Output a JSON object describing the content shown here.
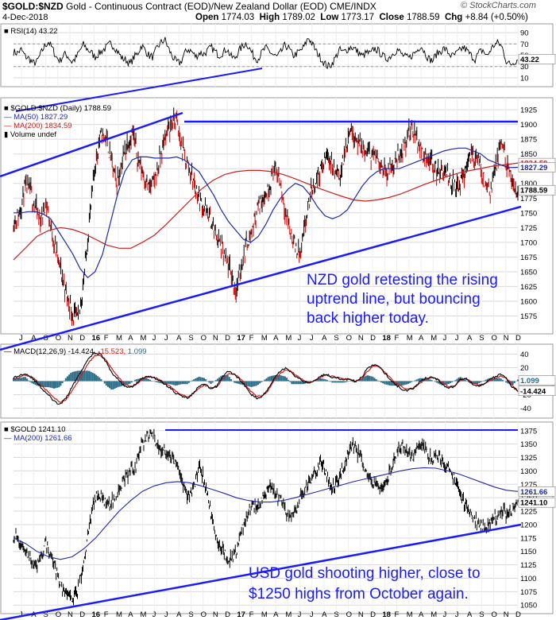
{
  "header": {
    "symbol": "$GOLD:$NZD",
    "description": "Gold - Continuous Contract (EOD)/New Zealand Dollar (EOD)",
    "exchange": "CME/INDX",
    "credit": "© StockCharts.com",
    "date": "4-Dec-2018",
    "open_label": "Open",
    "open": "1774.03",
    "high_label": "High",
    "high": "1789.02",
    "low_label": "Low",
    "low": "1773.17",
    "close_label": "Close",
    "close": "1788.59",
    "chg_label": "Chg",
    "chg": "+8.84 (+0.50%)"
  },
  "colors": {
    "price_up": "#000000",
    "price_down": "#cc0000",
    "ma50": "#1f2aa8",
    "ma200": "#cc1f1f",
    "trendline": "#1a1aff",
    "macd": "#000000",
    "macd_signal": "#cc1f1f",
    "histogram": "#2b6c87",
    "grid": "#d9d9d9"
  },
  "chart_data": [
    {
      "panel": "rsi",
      "type": "line",
      "legend": "RSI(14) 43.22",
      "y_ticks": [
        10,
        30,
        50,
        70,
        90
      ],
      "ylim": [
        0,
        100
      ],
      "last_value": "43.22",
      "series": [
        {
          "name": "RSI(14)",
          "values": [
            56,
            54,
            60,
            48,
            44,
            36,
            38,
            52,
            66,
            74,
            62,
            47,
            40,
            52,
            49,
            38,
            44,
            57,
            69,
            61,
            55,
            47,
            53,
            59,
            64,
            71,
            65,
            55,
            44,
            42,
            34,
            46,
            53,
            68,
            58,
            49,
            47,
            63,
            72,
            78,
            61,
            47,
            38,
            36,
            52,
            61,
            56,
            47,
            55,
            52,
            58,
            64,
            56,
            50,
            55,
            62,
            48,
            44,
            57,
            66,
            72,
            60,
            47,
            43,
            55,
            63,
            57,
            50,
            47,
            56,
            68,
            62,
            49,
            53,
            58,
            66,
            82,
            70,
            57,
            47,
            37,
            30,
            34,
            46,
            60,
            55,
            60,
            65,
            61,
            54,
            48,
            55,
            52,
            62,
            58,
            50,
            44,
            47,
            55,
            60,
            52,
            47,
            45,
            52,
            58,
            68,
            55,
            44,
            40,
            52,
            57,
            62,
            55,
            48,
            52,
            58,
            64,
            57,
            49,
            43,
            55,
            59,
            48,
            60,
            69,
            72,
            63,
            40,
            33,
            38,
            43
          ]
        }
      ]
    },
    {
      "panel": "price",
      "type": "line",
      "legend_title": "$GOLD:$NZD (Daily) 1788.59",
      "legend_ma50": "MA(50) 1827.29",
      "legend_ma200": "MA(200) 1834.59",
      "legend_volume": "Volume undef",
      "x_ticks": [
        "J",
        "A",
        "S",
        "O",
        "N",
        "D",
        "16",
        "F",
        "M",
        "A",
        "M",
        "J",
        "J",
        "A",
        "S",
        "O",
        "N",
        "D",
        "17",
        "F",
        "M",
        "A",
        "M",
        "J",
        "J",
        "A",
        "S",
        "O",
        "N",
        "D",
        "18",
        "F",
        "M",
        "A",
        "M",
        "J",
        "J",
        "A",
        "S",
        "O",
        "N",
        "D"
      ],
      "y_ticks": [
        1575,
        1600,
        1625,
        1650,
        1675,
        1700,
        1725,
        1750,
        1775,
        1800,
        1825,
        1850,
        1875,
        1900,
        1925
      ],
      "ylim": [
        1550,
        1940
      ],
      "last_values": {
        "close": "1788.59",
        "ma50": "1827.29",
        "ma200": "1834.59"
      },
      "annotation": [
        "NZD gold retesting the rising",
        "uptrend line, but bouncing",
        "back higher today."
      ],
      "series": [
        {
          "name": "$GOLD:$NZD",
          "values": [
            1735,
            1745,
            1790,
            1790,
            1760,
            1735,
            1770,
            1720,
            1680,
            1640,
            1605,
            1575,
            1570,
            1640,
            1735,
            1830,
            1880,
            1880,
            1840,
            1800,
            1835,
            1870,
            1885,
            1840,
            1815,
            1790,
            1805,
            1840,
            1880,
            1900,
            1910,
            1860,
            1835,
            1810,
            1780,
            1760,
            1745,
            1720,
            1700,
            1670,
            1650,
            1615,
            1660,
            1700,
            1720,
            1760,
            1775,
            1790,
            1825,
            1810,
            1760,
            1720,
            1690,
            1680,
            1740,
            1790,
            1810,
            1830,
            1850,
            1825,
            1810,
            1845,
            1895,
            1880,
            1860,
            1850,
            1850,
            1845,
            1830,
            1820,
            1830,
            1850,
            1860,
            1890,
            1885,
            1860,
            1845,
            1840,
            1820,
            1820,
            1810,
            1800,
            1790,
            1810,
            1850,
            1845,
            1830,
            1800,
            1790,
            1830,
            1870,
            1830,
            1795,
            1788.59
          ]
        },
        {
          "name": "MA(50)",
          "values": [
            1750,
            1750,
            1752,
            1752,
            1748,
            1740,
            1720,
            1700,
            1680,
            1655,
            1640,
            1650,
            1680,
            1730,
            1780,
            1820,
            1840,
            1845,
            1845,
            1843,
            1843,
            1843,
            1845,
            1840,
            1830,
            1820,
            1800,
            1780,
            1755,
            1735,
            1720,
            1705,
            1700,
            1710,
            1730,
            1755,
            1775,
            1790,
            1800,
            1795,
            1780,
            1760,
            1745,
            1740,
            1745,
            1755,
            1775,
            1795,
            1810,
            1820,
            1825,
            1825,
            1825,
            1830,
            1835,
            1840,
            1845,
            1850,
            1855,
            1858,
            1860,
            1860,
            1855,
            1850,
            1840,
            1835,
            1830,
            1827,
            1827.29
          ]
        },
        {
          "name": "MA(200)",
          "values": [
            1670,
            1690,
            1710,
            1720,
            1725,
            1722,
            1715,
            1705,
            1695,
            1690,
            1690,
            1700,
            1712,
            1730,
            1750,
            1770,
            1790,
            1805,
            1815,
            1820,
            1822,
            1822,
            1820,
            1815,
            1808,
            1800,
            1792,
            1785,
            1778,
            1772,
            1770,
            1772,
            1776,
            1782,
            1790,
            1798,
            1805,
            1812,
            1818,
            1822,
            1826,
            1830,
            1832,
            1834.59
          ]
        }
      ]
    },
    {
      "panel": "macd",
      "type": "line",
      "legend": "MACD(12,26,9) -14.424, -15.523, 1.099",
      "legend_parts": {
        "label": "MACD(12,26,9)",
        "macd": "-14.424",
        "signal": "-15.523",
        "hist": "1.099"
      },
      "y_ticks": [
        -40,
        -20,
        0,
        20,
        40
      ],
      "ylim": [
        -50,
        50
      ],
      "last_values": {
        "macd": "-14.424",
        "hist": "1.099",
        "signal": "-15.523"
      },
      "series": [
        {
          "name": "MACD",
          "values": [
            5,
            8,
            12,
            6,
            -2,
            -12,
            -20,
            -30,
            -35,
            -26,
            -10,
            5,
            20,
            35,
            42,
            40,
            28,
            12,
            3,
            -6,
            -10,
            -5,
            3,
            8,
            6,
            2,
            -4,
            -10,
            -18,
            -22,
            -25,
            -18,
            -8,
            -4,
            -12,
            -8,
            6,
            15,
            10,
            3,
            -8,
            -20,
            -25,
            -22,
            -10,
            5,
            15,
            20,
            12,
            5,
            0,
            -3,
            2,
            8,
            10,
            6,
            4,
            2,
            3,
            -1,
            5,
            18,
            25,
            22,
            12,
            2,
            -6,
            -12,
            -14,
            -10,
            -2,
            4,
            6,
            3,
            -5,
            -10,
            -8,
            3,
            5,
            -3,
            -8,
            -5,
            2,
            6,
            10,
            4,
            -8,
            -14.424
          ]
        },
        {
          "name": "Signal",
          "values": [
            3,
            6,
            9,
            7,
            1,
            -8,
            -16,
            -25,
            -31,
            -28,
            -16,
            -2,
            13,
            28,
            37,
            38,
            31,
            18,
            7,
            -3,
            -8,
            -6,
            1,
            6,
            6,
            3,
            -2,
            -8,
            -15,
            -20,
            -23,
            -19,
            -11,
            -6,
            -10,
            -9,
            2,
            11,
            11,
            5,
            -5,
            -16,
            -22,
            -22,
            -13,
            1,
            11,
            17,
            14,
            7,
            2,
            -2,
            1,
            6,
            9,
            7,
            5,
            3,
            3,
            0,
            3,
            14,
            22,
            22,
            14,
            5,
            -3,
            -9,
            -12,
            -10,
            -4,
            2,
            5,
            4,
            -2,
            -8,
            -8,
            0,
            4,
            -1,
            -6,
            -5,
            0,
            4,
            8,
            5,
            -5,
            -15.523
          ]
        }
      ]
    },
    {
      "panel": "gold",
      "type": "line",
      "legend_title": "$GOLD 1241.10",
      "legend_ma200": "MA(200) 1261.66",
      "x_ticks": [
        "J",
        "A",
        "S",
        "O",
        "N",
        "D",
        "16",
        "F",
        "M",
        "A",
        "M",
        "J",
        "J",
        "A",
        "S",
        "O",
        "N",
        "D",
        "17",
        "F",
        "M",
        "A",
        "M",
        "J",
        "J",
        "A",
        "S",
        "O",
        "N",
        "D",
        "18",
        "F",
        "M",
        "A",
        "M",
        "J",
        "J",
        "A",
        "S",
        "O",
        "N",
        "D"
      ],
      "y_ticks": [
        1050,
        1075,
        1100,
        1125,
        1150,
        1175,
        1200,
        1225,
        1250,
        1275,
        1300,
        1325,
        1350,
        1375
      ],
      "ylim": [
        1040,
        1385
      ],
      "last_values": {
        "close": "1241.10",
        "ma200": "1261.66"
      },
      "annotation": [
        "USD gold shooting higher, close to",
        "$1250 highs from October again."
      ],
      "series": [
        {
          "name": "$GOLD",
          "values": [
            1180,
            1170,
            1155,
            1140,
            1120,
            1130,
            1165,
            1145,
            1115,
            1085,
            1070,
            1060,
            1075,
            1110,
            1180,
            1240,
            1260,
            1240,
            1235,
            1250,
            1265,
            1285,
            1300,
            1310,
            1345,
            1360,
            1370,
            1350,
            1340,
            1335,
            1320,
            1310,
            1270,
            1250,
            1270,
            1310,
            1280,
            1230,
            1180,
            1160,
            1140,
            1135,
            1150,
            1190,
            1215,
            1240,
            1230,
            1250,
            1270,
            1260,
            1250,
            1230,
            1210,
            1220,
            1250,
            1265,
            1285,
            1300,
            1320,
            1290,
            1270,
            1280,
            1305,
            1335,
            1350,
            1330,
            1310,
            1290,
            1275,
            1265,
            1280,
            1300,
            1330,
            1350,
            1340,
            1325,
            1340,
            1355,
            1330,
            1320,
            1330,
            1315,
            1300,
            1290,
            1260,
            1240,
            1225,
            1210,
            1200,
            1195,
            1205,
            1215,
            1225,
            1220,
            1230,
            1241.1
          ]
        },
        {
          "name": "MA(200)",
          "values": [
            1175,
            1165,
            1150,
            1140,
            1135,
            1140,
            1155,
            1175,
            1200,
            1225,
            1245,
            1262,
            1272,
            1278,
            1280,
            1278,
            1272,
            1265,
            1258,
            1250,
            1245,
            1242,
            1242,
            1245,
            1250,
            1256,
            1262,
            1268,
            1274,
            1280,
            1285,
            1290,
            1295,
            1300,
            1304,
            1306,
            1305,
            1300,
            1294,
            1286,
            1278,
            1270,
            1264,
            1261.66
          ]
        }
      ]
    }
  ]
}
